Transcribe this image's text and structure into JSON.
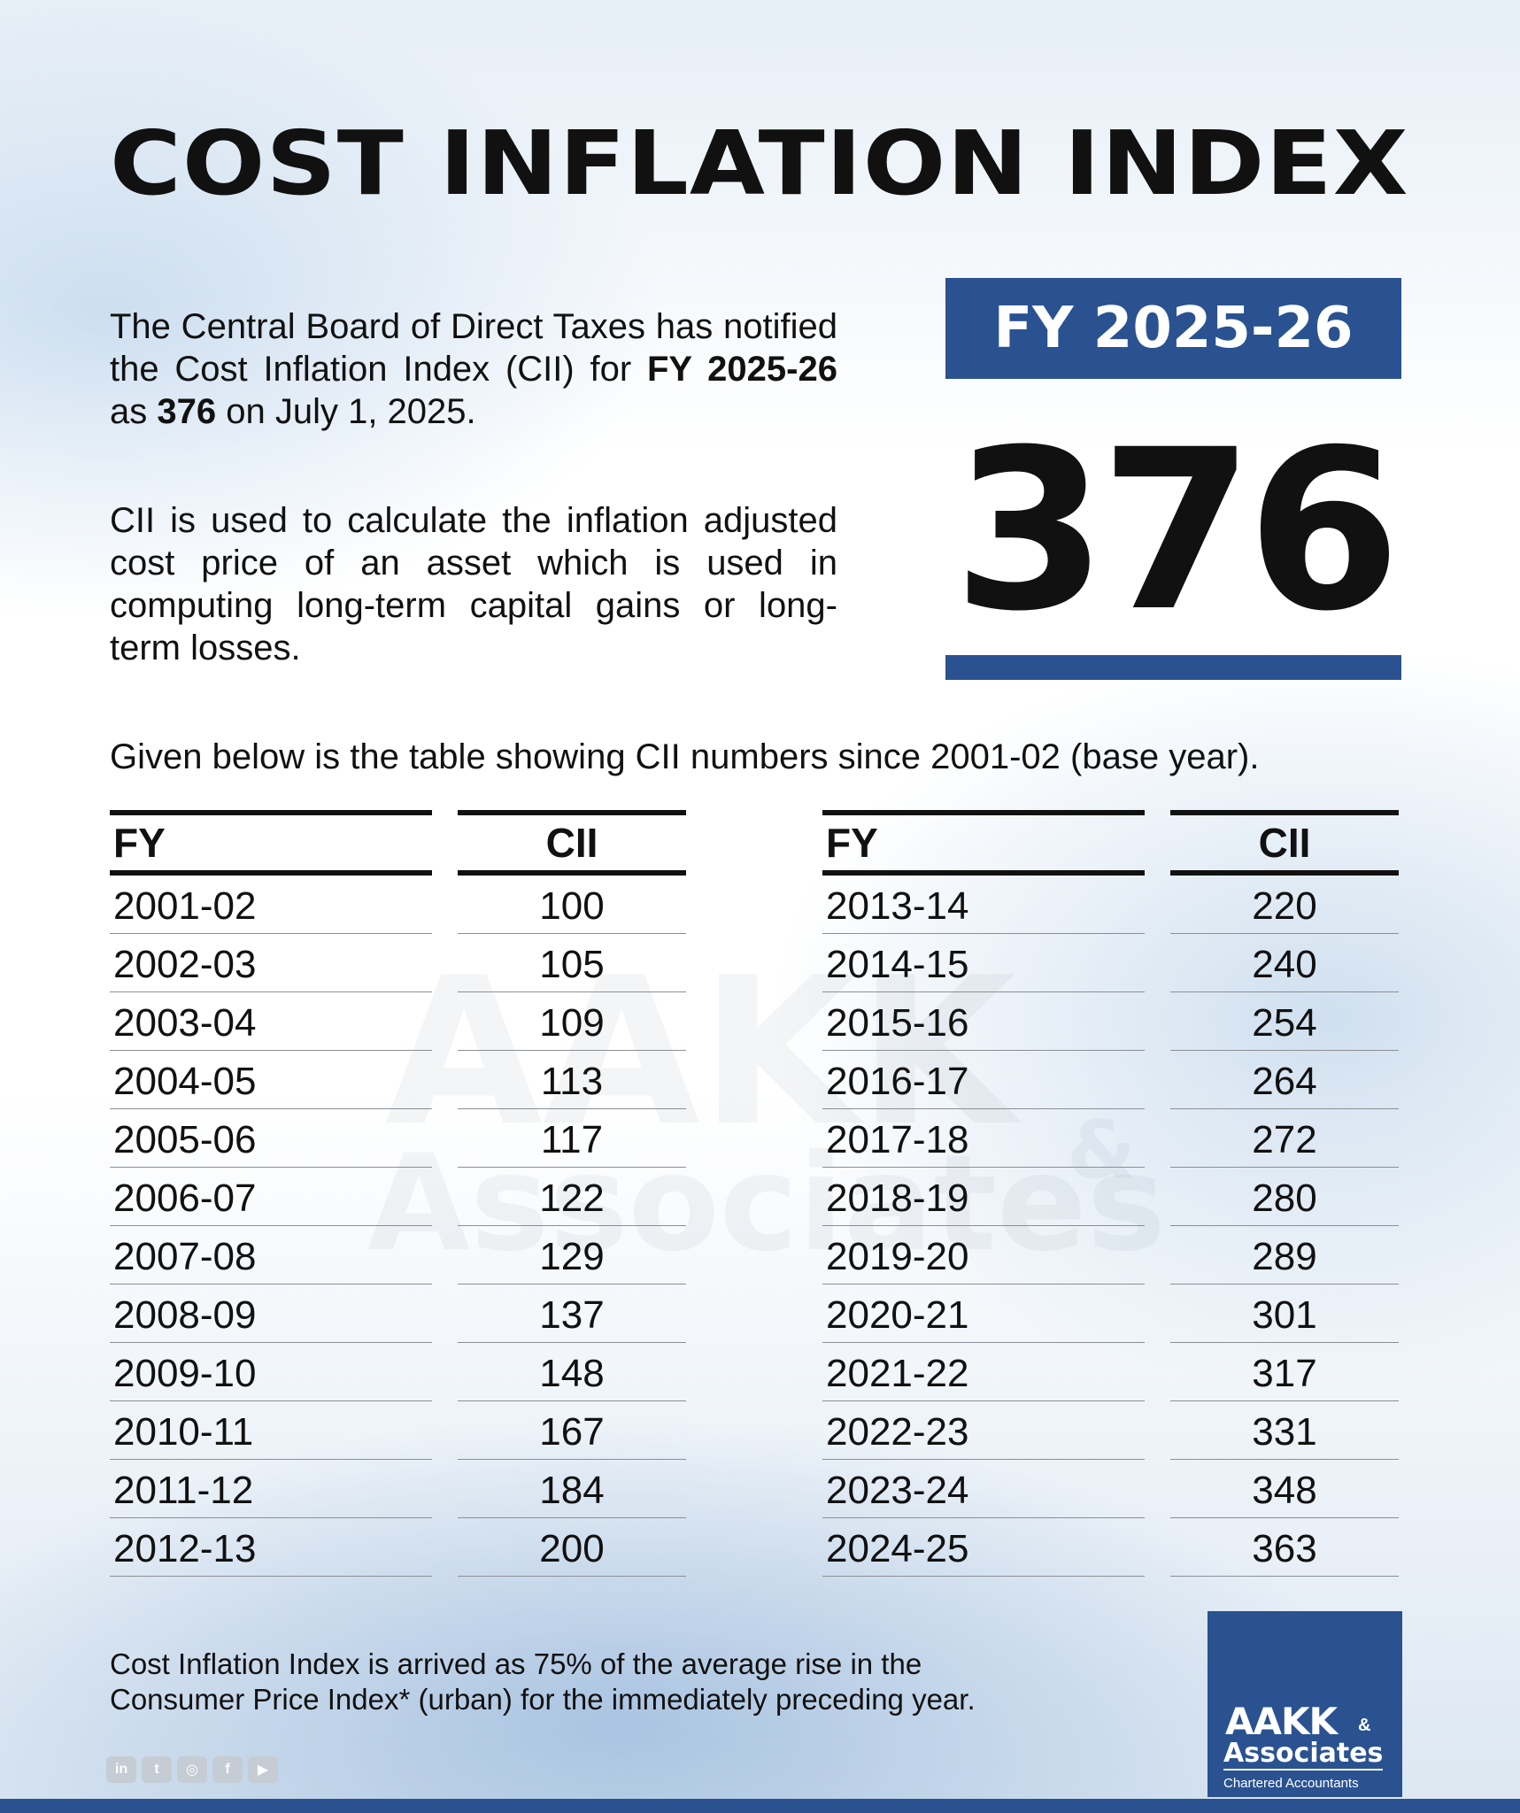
{
  "title": "COST INFLATION INDEX",
  "description": {
    "p1_prefix": "The Central Board of Direct Taxes has notified the Cost Inflation Index (CII) for ",
    "p1_fy": "FY 2025-26",
    "p1_mid": " as ",
    "p1_value": "376",
    "p1_suffix": " on July 1, 2025.",
    "p2": "CII is used to calculate the inflation adjusted cost price of an asset which is used in computing long-term capital gains or long-term losses."
  },
  "highlight": {
    "fy_label": "FY 2025-26",
    "value": "376",
    "accent_color": "#2a5291"
  },
  "table_intro": "Given below is the table showing CII numbers since 2001-02 (base year).",
  "table": {
    "header_fy": "FY",
    "header_cii": "CII",
    "left_rows": [
      {
        "fy": "2001-02",
        "cii": "100"
      },
      {
        "fy": "2002-03",
        "cii": "105"
      },
      {
        "fy": "2003-04",
        "cii": "109"
      },
      {
        "fy": "2004-05",
        "cii": "113"
      },
      {
        "fy": "2005-06",
        "cii": "117"
      },
      {
        "fy": "2006-07",
        "cii": "122"
      },
      {
        "fy": "2007-08",
        "cii": "129"
      },
      {
        "fy": "2008-09",
        "cii": "137"
      },
      {
        "fy": "2009-10",
        "cii": "148"
      },
      {
        "fy": "2010-11",
        "cii": "167"
      },
      {
        "fy": "2011-12",
        "cii": "184"
      },
      {
        "fy": "2012-13",
        "cii": "200"
      }
    ],
    "right_rows": [
      {
        "fy": "2013-14",
        "cii": "220"
      },
      {
        "fy": "2014-15",
        "cii": "240"
      },
      {
        "fy": "2015-16",
        "cii": "254"
      },
      {
        "fy": "2016-17",
        "cii": "264"
      },
      {
        "fy": "2017-18",
        "cii": "272"
      },
      {
        "fy": "2018-19",
        "cii": "280"
      },
      {
        "fy": "2019-20",
        "cii": "289"
      },
      {
        "fy": "2020-21",
        "cii": "301"
      },
      {
        "fy": "2021-22",
        "cii": "317"
      },
      {
        "fy": "2022-23",
        "cii": "331"
      },
      {
        "fy": "2023-24",
        "cii": "348"
      },
      {
        "fy": "2024-25",
        "cii": "363"
      }
    ]
  },
  "watermark": {
    "line1": "AAKK",
    "amp": "&",
    "line2": "Associates"
  },
  "footnote": {
    "line1": "Cost Inflation Index is arrived as 75% of the average rise in the",
    "line2": "Consumer Price Index* (urban) for the immediately preceding year."
  },
  "logo": {
    "line1": "AAKK",
    "amp": "&",
    "line2": "Associates",
    "line3": "Chartered Accountants"
  },
  "socials": [
    {
      "icon": "linkedin-icon",
      "glyph": "in"
    },
    {
      "icon": "twitter-icon",
      "glyph": "t"
    },
    {
      "icon": "instagram-icon",
      "glyph": "◎"
    },
    {
      "icon": "facebook-icon",
      "glyph": "f"
    },
    {
      "icon": "youtube-icon",
      "glyph": "▶"
    }
  ]
}
